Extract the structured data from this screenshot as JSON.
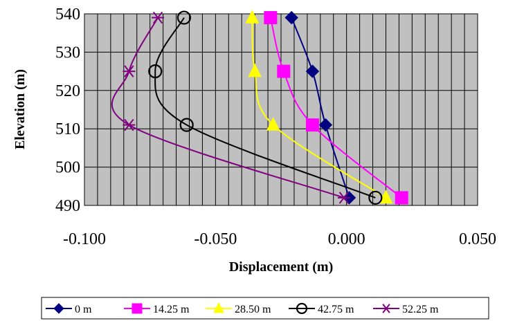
{
  "chart_data": {
    "type": "line",
    "xlabel": "Displacement (m)",
    "ylabel": "Elevation (m)",
    "xlim": [
      -0.1,
      0.05
    ],
    "ylim": [
      490,
      540
    ],
    "x_ticks": [
      "-0.100",
      "-0.050",
      "0.000",
      "0.050"
    ],
    "y_ticks": [
      "490",
      "500",
      "510",
      "520",
      "530",
      "540"
    ],
    "x_minor_step": 0.005,
    "grid": true,
    "background": "#c0c0c0",
    "smooth": true,
    "legend_position": "bottom",
    "series": [
      {
        "name": "0 m",
        "color": "#000080",
        "marker": "diamond",
        "points": [
          [
            0.001,
            492
          ],
          [
            -0.008,
            511
          ],
          [
            -0.013,
            525
          ],
          [
            -0.021,
            539
          ]
        ]
      },
      {
        "name": "14.25 m",
        "color": "#ff00ff",
        "marker": "square",
        "points": [
          [
            0.021,
            492
          ],
          [
            -0.013,
            511
          ],
          [
            -0.024,
            525
          ],
          [
            -0.029,
            539
          ]
        ]
      },
      {
        "name": "28.50 m",
        "color": "#ffff00",
        "marker": "triangle",
        "points": [
          [
            0.015,
            492
          ],
          [
            -0.028,
            511
          ],
          [
            -0.035,
            525
          ],
          [
            -0.036,
            539
          ]
        ]
      },
      {
        "name": "42.75 m",
        "color": "#000000",
        "marker": "circle",
        "points": [
          [
            0.011,
            492
          ],
          [
            -0.061,
            511
          ],
          [
            -0.073,
            525
          ],
          [
            -0.062,
            539
          ]
        ]
      },
      {
        "name": "52.25 m",
        "color": "#800080",
        "marker": "star",
        "points": [
          [
            -0.001,
            492
          ],
          [
            -0.083,
            511
          ],
          [
            -0.083,
            525
          ],
          [
            -0.072,
            539
          ]
        ]
      }
    ]
  }
}
